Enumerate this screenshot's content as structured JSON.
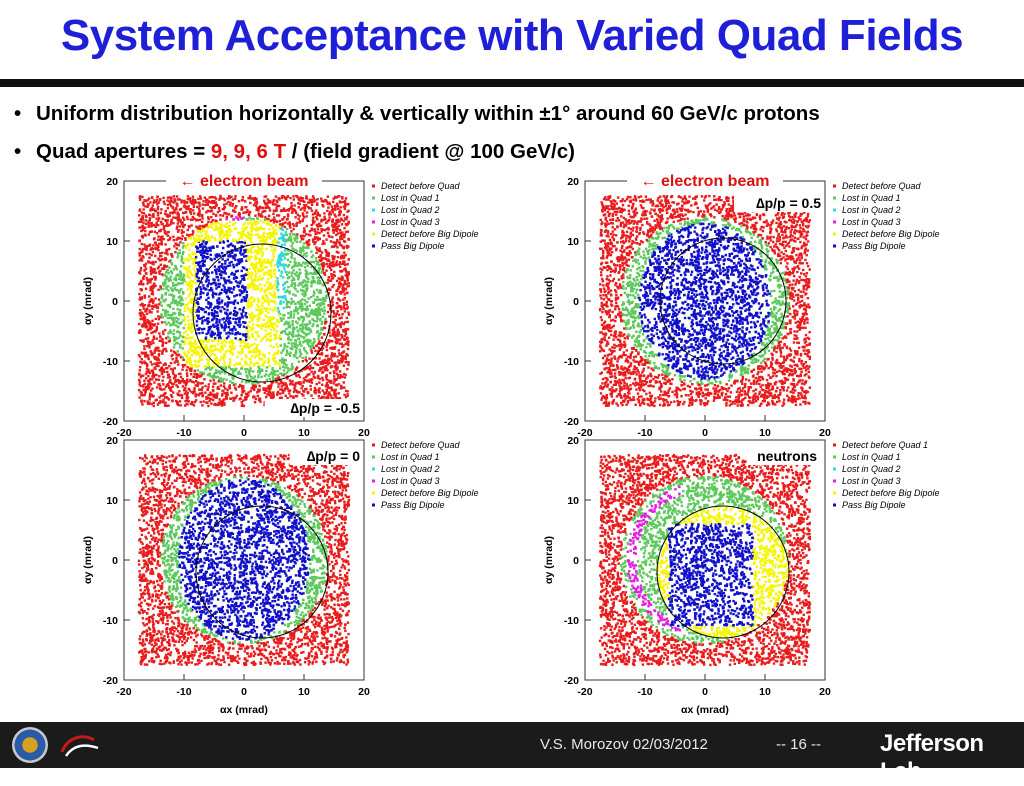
{
  "title": "System Acceptance with Varied Quad Fields",
  "bullets": [
    {
      "text": "Uniform distribution horizontally & vertically within ±1° around 60 GeV/c protons"
    },
    {
      "prefix": "Quad apertures = ",
      "highlight": "9, 9, 6 T",
      "suffix": " / (field gradient @ 100 GeV/c)"
    }
  ],
  "colors": {
    "title": "#1f1fd8",
    "detect_before_quad": "#e81c1c",
    "lost_quad1": "#5cc85c",
    "lost_quad2": "#30d8d8",
    "lost_quad3": "#e020e0",
    "detect_before_big_dipole": "#f5f500",
    "pass_big_dipole": "#1010c8",
    "annotation_red": "#e01010"
  },
  "chart_data": [
    {
      "type": "scatter",
      "panel": "top-left",
      "xlabel": "αx (mrad)",
      "ylabel": "αy (mrad)",
      "xlim": [
        -20,
        20
      ],
      "ylim": [
        -20,
        20
      ],
      "xticks": [
        "-20",
        "-10",
        "0",
        "10",
        "20"
      ],
      "yticks": [
        "20",
        "10",
        "0",
        "-10",
        "-20"
      ],
      "legend": [
        "Detect before Quad",
        "Lost in Quad 1",
        "Lost in Quad 2",
        "Lost in Quad 3",
        "Detect before Big Dipole",
        "Pass Big Dipole"
      ],
      "annotations": {
        "beam": "← electron beam",
        "label": "∆p/p = -0.5"
      },
      "regions": {
        "quad_circle": {
          "cx": 0,
          "cy": 0,
          "r": 14
        },
        "blue_box": {
          "x": [
            -8,
            0.5
          ],
          "y": [
            -6.5,
            10
          ]
        },
        "yellow_box": {
          "x": [
            -10,
            6
          ],
          "y": [
            -11,
            13.5
          ]
        },
        "cyan_band": {
          "x": [
            5.5,
            7
          ],
          "y": [
            -2,
            12
          ]
        },
        "magenta_band": {
          "x": [
            -8,
            0
          ],
          "y": [
            13.5,
            15
          ]
        },
        "acceptance_circle": {
          "cx": 3,
          "cy": -2,
          "r": 11.5
        }
      }
    },
    {
      "type": "scatter",
      "panel": "top-right",
      "xlabel": "αx (mrad)",
      "ylabel": "αy (mrad)",
      "xlim": [
        -20,
        20
      ],
      "ylim": [
        -20,
        20
      ],
      "xticks": [
        "-20",
        "-10",
        "0",
        "10",
        "20"
      ],
      "yticks": [
        "20",
        "10",
        "0",
        "-10",
        "-20"
      ],
      "legend": [
        "Detect before Quad",
        "Lost in Quad 1",
        "Lost in Quad 2",
        "Lost in Quad 3",
        "Detect before Big Dipole",
        "Pass Big Dipole"
      ],
      "annotations": {
        "beam": "← electron beam",
        "label": "∆p/p = 0.5"
      },
      "regions": {
        "quad_circle": {
          "cx": 0,
          "cy": 0,
          "r": 14
        },
        "blue_disk": {
          "cx": 0,
          "cy": 0,
          "rx": 11,
          "ry": 13
        },
        "acceptance_circle": {
          "cx": 3,
          "cy": 0,
          "r": 10.5
        }
      }
    },
    {
      "type": "scatter",
      "panel": "bottom-left",
      "xlabel": "αx (mrad)",
      "ylabel": "αy (mrad)",
      "xlim": [
        -20,
        20
      ],
      "ylim": [
        -20,
        20
      ],
      "xticks": [
        "-20",
        "-10",
        "0",
        "10",
        "20"
      ],
      "yticks": [
        "20",
        "10",
        "0",
        "-10",
        "-20"
      ],
      "legend": [
        "Detect before Quad",
        "Lost in Quad 1",
        "Lost in Quad 2",
        "Lost in Quad 3",
        "Detect before Big Dipole",
        "Pass Big Dipole"
      ],
      "annotations": {
        "label": "∆p/p = 0"
      },
      "regions": {
        "quad_circle": {
          "cx": 0,
          "cy": 0,
          "r": 14
        },
        "blue_disk": {
          "cx": 0,
          "cy": 0,
          "rx": 11,
          "ry": 13.5
        },
        "acceptance_circle": {
          "cx": 3,
          "cy": -2,
          "r": 11
        }
      }
    },
    {
      "type": "scatter",
      "panel": "bottom-right",
      "xlabel": "αx (mrad)",
      "ylabel": "αy (mrad)",
      "xlim": [
        -20,
        20
      ],
      "ylim": [
        -20,
        20
      ],
      "xticks": [
        "-20",
        "-10",
        "0",
        "10",
        "20"
      ],
      "yticks": [
        "20",
        "10",
        "0",
        "-10",
        "-20"
      ],
      "legend": [
        "Detect before Quad 1",
        "Lost in Quad 1",
        "Lost in Quad 2",
        "Lost in Quad 3",
        "Detect before Big Dipole",
        "Pass Big Dipole"
      ],
      "annotations": {
        "label": "neutrons"
      },
      "regions": {
        "quad_circle": {
          "cx": 0,
          "cy": 0,
          "r": 14
        },
        "yellow_disk": {
          "cx": 3,
          "cy": -2,
          "r": 11
        },
        "blue_box": {
          "x": [
            -6,
            8
          ],
          "y": [
            -11,
            6
          ]
        },
        "magenta_arc": {
          "cx": 0,
          "cy": 0,
          "r": 13
        }
      }
    }
  ],
  "footer": {
    "author": "V.S. Morozov 02/03/2012",
    "page": "-- 16 --",
    "lab": "Jefferson Lab"
  }
}
